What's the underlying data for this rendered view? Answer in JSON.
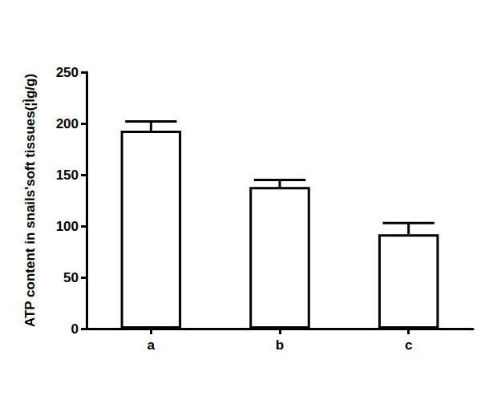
{
  "chart_data": {
    "type": "bar",
    "y_label": "ATP content in snails'soft tissues(¦Ìg/g)",
    "categories": [
      "a",
      "b",
      "c"
    ],
    "values": [
      193,
      138,
      92
    ],
    "errors": [
      9,
      7,
      11
    ],
    "color": "#ffffff",
    "ylim": [
      0,
      250
    ],
    "yticks": [
      0,
      50,
      100,
      150,
      200,
      250
    ],
    "grid": false
  }
}
